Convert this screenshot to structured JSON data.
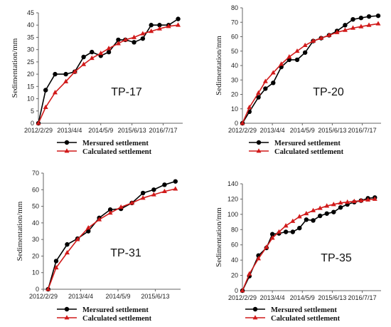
{
  "chart_data": [
    {
      "type": "line",
      "panel_label": "TP-17",
      "ylabel": "Sedimentation/mm",
      "ylim": [
        0,
        45
      ],
      "yticks": [
        "0",
        "5",
        "10",
        "15",
        "20",
        "25",
        "30",
        "35",
        "40",
        "45"
      ],
      "xlim": [
        "2012-02-29",
        "2017-03-25"
      ],
      "xticks": [
        "2012/2/29",
        "2013/4/4",
        "2014/5/9",
        "2015/6/13",
        "2016/7/17"
      ],
      "grid": false,
      "legend": "bottom",
      "series": [
        {
          "name": "Mersured settlement",
          "color": "#000000",
          "marker": "circle",
          "x": [
            "2012-02-29",
            "2012-06-01",
            "2012-09-30",
            "2013-02-15",
            "2013-06-10",
            "2013-10-01",
            "2014-01-15",
            "2014-05-09",
            "2014-08-20",
            "2014-12-20",
            "2015-03-20",
            "2015-07-10",
            "2015-10-30",
            "2016-02-15",
            "2016-06-01",
            "2016-09-25",
            "2017-01-25"
          ],
          "y": [
            0,
            13.5,
            20,
            20,
            21,
            27,
            29,
            27.5,
            29,
            34,
            34,
            33,
            34.5,
            40,
            40,
            40,
            42.5
          ]
        },
        {
          "name": "Calculated settlement",
          "color": "#d11a1a",
          "marker": "triangle",
          "x": [
            "2012-02-29",
            "2012-06-01",
            "2012-09-30",
            "2013-02-15",
            "2013-06-10",
            "2013-10-01",
            "2014-01-15",
            "2014-05-09",
            "2014-08-20",
            "2014-12-20",
            "2015-03-20",
            "2015-07-10",
            "2015-10-30",
            "2016-02-15",
            "2016-06-01",
            "2016-09-25",
            "2017-01-25"
          ],
          "y": [
            0,
            6.5,
            12.5,
            17,
            21,
            24,
            26.5,
            28.5,
            30.5,
            32.5,
            34,
            35,
            36.5,
            37.5,
            38.5,
            39.5,
            40
          ]
        }
      ]
    },
    {
      "type": "line",
      "panel_label": "TP-20",
      "ylabel": "Sedimentation/mm",
      "ylim": [
        0,
        80
      ],
      "yticks": [
        "0",
        "10",
        "20",
        "30",
        "40",
        "50",
        "60",
        "70",
        "80"
      ],
      "xlim": [
        "2012-02-29",
        "2017-03-25"
      ],
      "xticks": [
        "2012/2/29",
        "2013/4/4",
        "2014/5/9",
        "2015/6/13",
        "2016/7/17"
      ],
      "grid": false,
      "legend": "bottom",
      "series": [
        {
          "name": "Mersured settlement",
          "color": "#000000",
          "marker": "circle",
          "x": [
            "2012-02-29",
            "2012-06-01",
            "2012-09-30",
            "2013-01-01",
            "2013-04-15",
            "2013-08-01",
            "2013-11-15",
            "2014-03-01",
            "2014-06-15",
            "2014-10-01",
            "2015-01-15",
            "2015-05-01",
            "2015-08-15",
            "2015-12-01",
            "2016-03-15",
            "2016-07-01",
            "2016-10-15",
            "2017-02-15"
          ],
          "y": [
            0,
            8,
            18,
            24,
            28,
            39,
            44,
            44,
            49,
            57,
            59,
            61,
            64,
            68,
            72,
            73,
            74,
            74.5
          ]
        },
        {
          "name": "Calculated settlement",
          "color": "#d11a1a",
          "marker": "triangle",
          "x": [
            "2012-02-29",
            "2012-06-01",
            "2012-09-30",
            "2013-01-01",
            "2013-04-15",
            "2013-08-01",
            "2013-11-15",
            "2014-03-01",
            "2014-06-15",
            "2014-10-01",
            "2015-01-15",
            "2015-05-01",
            "2015-08-15",
            "2015-12-01",
            "2016-03-15",
            "2016-07-01",
            "2016-10-15",
            "2017-02-15"
          ],
          "y": [
            0,
            11,
            21,
            29,
            35,
            41,
            46,
            50,
            54,
            57,
            59,
            61,
            63,
            64.5,
            66,
            67,
            68,
            69
          ]
        }
      ]
    },
    {
      "type": "line",
      "panel_label": "TP-31",
      "ylabel": "Sedimentation/mm",
      "ylim": [
        0,
        70
      ],
      "yticks": [
        "0",
        "10",
        "20",
        "30",
        "40",
        "50",
        "60",
        "70"
      ],
      "xlim": [
        "2012-02-29",
        "2016-03-10"
      ],
      "xticks": [
        "2012/2/29",
        "2013/4/4",
        "2014/5/9",
        "2015/6/13"
      ],
      "grid": false,
      "legend": "bottom",
      "series": [
        {
          "name": "Mersured settlement",
          "color": "#000000",
          "marker": "circle",
          "x": [
            "2012-04-20",
            "2012-07-15",
            "2012-11-10",
            "2013-03-01",
            "2013-06-25",
            "2013-10-20",
            "2014-02-15",
            "2014-06-10",
            "2014-10-05",
            "2015-02-01",
            "2015-05-28",
            "2015-09-20",
            "2016-01-15"
          ],
          "y": [
            0,
            17,
            27,
            30.5,
            35,
            43,
            48,
            48.5,
            52,
            58,
            60,
            63,
            65
          ]
        },
        {
          "name": "Calculated settlement",
          "color": "#d11a1a",
          "marker": "triangle",
          "x": [
            "2012-04-20",
            "2012-07-15",
            "2012-11-10",
            "2013-03-01",
            "2013-06-25",
            "2013-10-20",
            "2014-02-15",
            "2014-06-10",
            "2014-10-05",
            "2015-02-01",
            "2015-05-28",
            "2015-09-20",
            "2016-01-15"
          ],
          "y": [
            0,
            13,
            22,
            30,
            37,
            42,
            46,
            49.5,
            52,
            55,
            57,
            59,
            60.5
          ]
        }
      ]
    },
    {
      "type": "line",
      "panel_label": "TP-35",
      "ylabel": "Sedimentation/mm",
      "ylim": [
        0,
        140
      ],
      "yticks": [
        "0",
        "20",
        "40",
        "60",
        "80",
        "100",
        "120",
        "140"
      ],
      "xlim": [
        "2012-02-29",
        "2017-03-25"
      ],
      "xticks": [
        "2012/2/29",
        "2013/4/4",
        "2014/5/9",
        "2015/6/13",
        "2016/7/17"
      ],
      "grid": false,
      "legend": "bottom",
      "series": [
        {
          "name": "Mersured settlement",
          "color": "#000000",
          "marker": "circle",
          "x": [
            "2012-02-29",
            "2012-06-01",
            "2012-09-30",
            "2013-01-15",
            "2013-04-04",
            "2013-07-01",
            "2013-10-01",
            "2014-01-01",
            "2014-04-01",
            "2014-07-01",
            "2014-10-01",
            "2015-01-01",
            "2015-04-01",
            "2015-07-01",
            "2015-10-01",
            "2016-01-01",
            "2016-04-01",
            "2016-07-01",
            "2016-10-01",
            "2017-01-01"
          ],
          "y": [
            0,
            19,
            46,
            56,
            74,
            75,
            77,
            77,
            82,
            93,
            92,
            98,
            101,
            103,
            109,
            113,
            116,
            118,
            121,
            122
          ]
        },
        {
          "name": "Calculated settlement",
          "color": "#d11a1a",
          "marker": "triangle",
          "x": [
            "2012-02-29",
            "2012-06-01",
            "2012-09-30",
            "2013-01-15",
            "2013-04-04",
            "2013-07-01",
            "2013-10-01",
            "2014-01-01",
            "2014-04-01",
            "2014-07-01",
            "2014-10-01",
            "2015-01-01",
            "2015-04-01",
            "2015-07-01",
            "2015-10-01",
            "2016-01-01",
            "2016-04-01",
            "2016-07-01",
            "2016-10-01",
            "2017-01-01"
          ],
          "y": [
            0,
            22,
            42,
            57,
            69,
            77,
            85,
            91,
            97,
            101,
            105,
            108,
            111,
            113,
            115,
            116,
            117,
            118,
            119,
            120
          ]
        }
      ]
    }
  ]
}
